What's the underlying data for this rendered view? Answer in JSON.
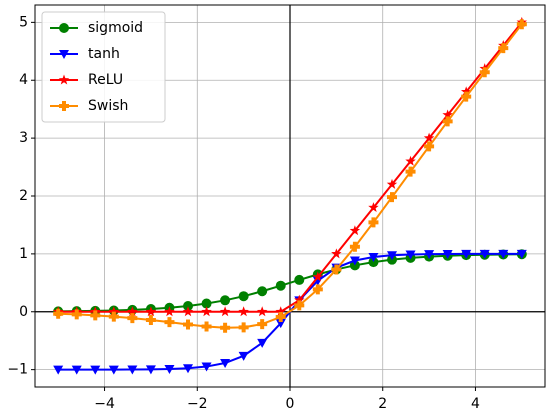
{
  "chart_data": {
    "type": "line",
    "x": [
      -5,
      -4.6,
      -4.2,
      -3.8,
      -3.4,
      -3,
      -2.6,
      -2.2,
      -1.8,
      -1.4,
      -1,
      -0.6,
      -0.2,
      0.2,
      0.6,
      1,
      1.4,
      1.8,
      2.2,
      2.6,
      3,
      3.4,
      3.8,
      4.2,
      4.6,
      5
    ],
    "series": [
      {
        "name": "sigmoid",
        "color": "#008000",
        "marker": "circle",
        "values": [
          0.0067,
          0.0099,
          0.0148,
          0.0219,
          0.0323,
          0.0474,
          0.0691,
          0.0998,
          0.1419,
          0.1978,
          0.2689,
          0.3543,
          0.4502,
          0.5498,
          0.6457,
          0.7311,
          0.8022,
          0.8581,
          0.9002,
          0.9309,
          0.9526,
          0.9677,
          0.9781,
          0.9852,
          0.9901,
          0.9933
        ]
      },
      {
        "name": "tanh",
        "color": "#0000ff",
        "marker": "triangle-down",
        "values": [
          -0.9999,
          -0.9998,
          -0.9995,
          -0.999,
          -0.9978,
          -0.9951,
          -0.989,
          -0.9757,
          -0.9468,
          -0.8854,
          -0.7616,
          -0.537,
          -0.1974,
          0.1974,
          0.537,
          0.7616,
          0.8854,
          0.9468,
          0.9757,
          0.989,
          0.9951,
          0.9978,
          0.999,
          0.9995,
          0.9998,
          0.9999
        ]
      },
      {
        "name": "ReLU",
        "color": "#ff0000",
        "marker": "star",
        "values": [
          0,
          0,
          0,
          0,
          0,
          0,
          0,
          0,
          0,
          0,
          0,
          0,
          0,
          0.2,
          0.6,
          1,
          1.4,
          1.8,
          2.2,
          2.6,
          3,
          3.4,
          3.8,
          4.2,
          4.6,
          5
        ]
      },
      {
        "name": "Swish",
        "color": "#ff8c00",
        "marker": "plus",
        "values": [
          -0.0335,
          -0.0455,
          -0.0622,
          -0.0832,
          -0.1098,
          -0.1423,
          -0.1797,
          -0.2196,
          -0.2554,
          -0.2769,
          -0.2689,
          -0.2126,
          -0.09,
          0.11,
          0.3874,
          0.7311,
          1.1231,
          1.5446,
          1.9804,
          2.4203,
          2.8577,
          3.2902,
          3.7168,
          4.1378,
          4.5545,
          4.9665
        ]
      }
    ],
    "xlim": [
      -5.5,
      5.5
    ],
    "ylim": [
      -1.3,
      5.3
    ],
    "xticks": [
      {
        "value": -4,
        "label": "−4"
      },
      {
        "value": -2,
        "label": "−2"
      },
      0,
      2,
      4
    ],
    "yticks": [
      {
        "value": -1,
        "label": "−1"
      },
      0,
      1,
      2,
      3,
      4,
      5
    ],
    "grid": true,
    "legend": "upper-left"
  }
}
